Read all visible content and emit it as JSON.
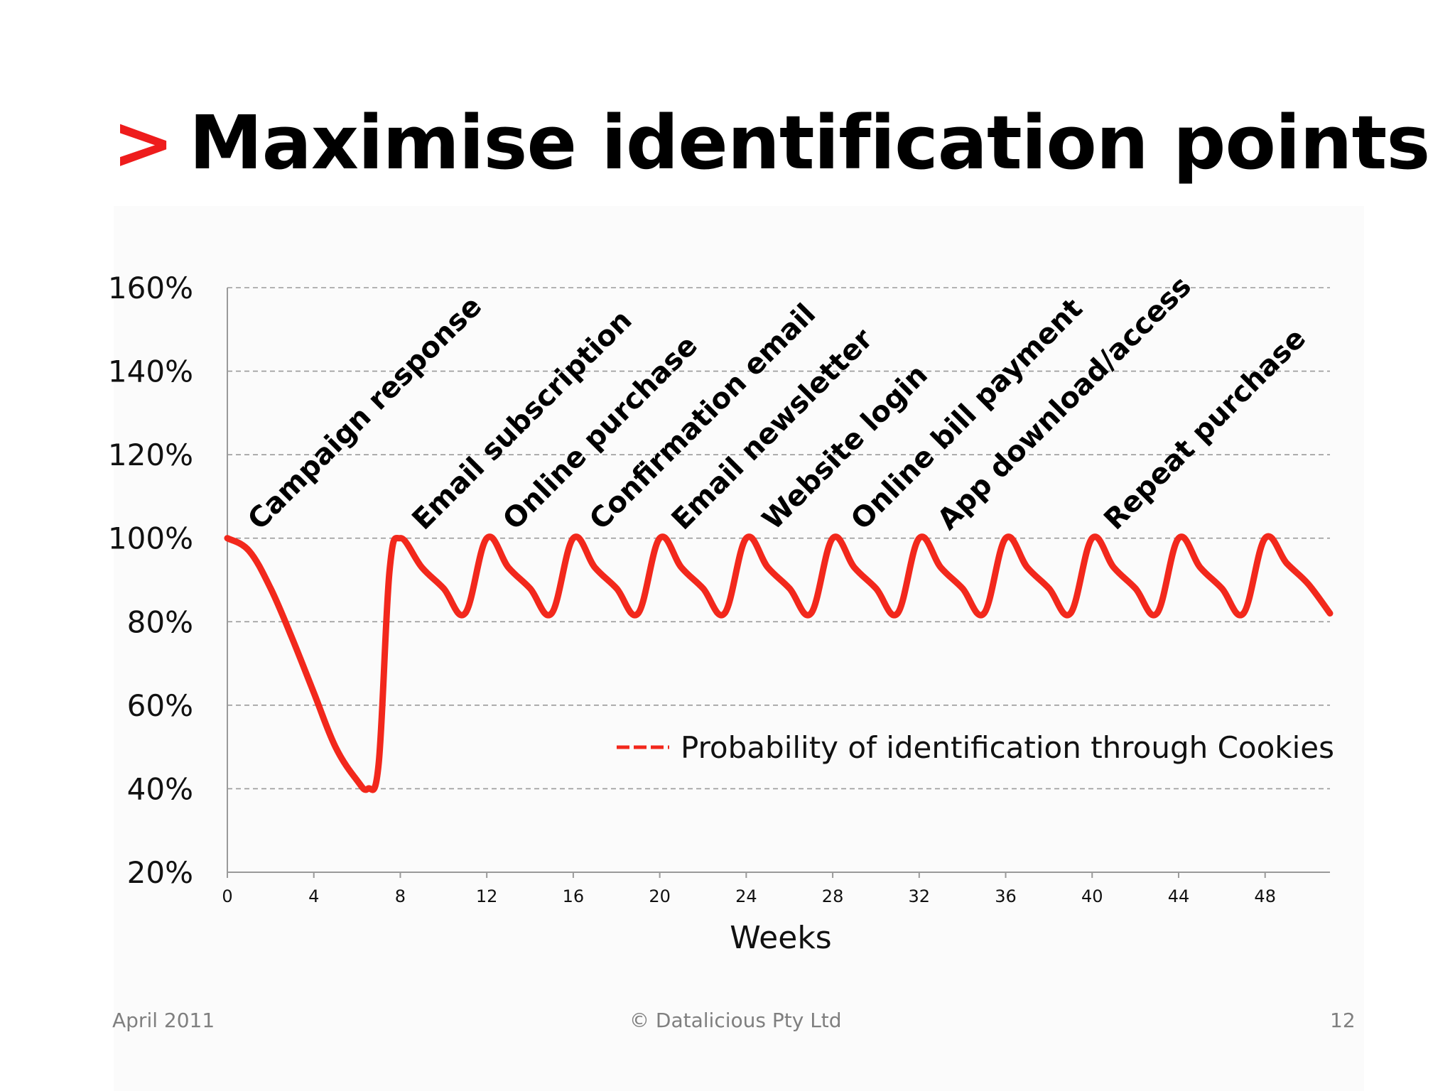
{
  "slide": {
    "title_marker": ">",
    "title": "Maximise identification points",
    "footer_date": "April 2011",
    "footer_copyright": "© Datalicious Pty Ltd",
    "page_number": "12",
    "accent_color": "#ee1c1c"
  },
  "chart_data": {
    "type": "line",
    "title": "",
    "xlabel": "Weeks",
    "ylabel": "",
    "xlim": [
      0,
      51
    ],
    "ylim": [
      20,
      160
    ],
    "x_ticks": [
      "0",
      "4",
      "8",
      "12",
      "16",
      "20",
      "24",
      "28",
      "32",
      "36",
      "40",
      "44",
      "48"
    ],
    "y_ticks": [
      "20%",
      "40%",
      "60%",
      "80%",
      "100%",
      "120%",
      "140%",
      "160%"
    ],
    "grid": "horizontal-dashed",
    "series": [
      {
        "name": "Probability of identification through Cookies",
        "color": "#f2281c",
        "x": [
          0,
          1,
          2,
          3,
          4,
          5,
          6,
          6.5,
          7,
          7.5,
          8,
          9,
          10,
          11,
          12,
          13,
          14,
          15,
          16,
          17,
          18,
          19,
          20,
          21,
          22,
          23,
          24,
          25,
          26,
          27,
          28,
          29,
          30,
          31,
          32,
          33,
          34,
          35,
          36,
          37,
          38,
          39,
          40,
          41,
          42,
          43,
          44,
          45,
          46,
          47,
          48,
          49,
          50,
          51
        ],
        "values": [
          100,
          97,
          88,
          76,
          63,
          50,
          42,
          40,
          46,
          92,
          100,
          93,
          88,
          82,
          100,
          93,
          88,
          82,
          100,
          93,
          88,
          82,
          100,
          93,
          88,
          82,
          100,
          93,
          88,
          82,
          100,
          93,
          88,
          82,
          100,
          93,
          88,
          82,
          100,
          93,
          88,
          82,
          100,
          93,
          88,
          82,
          100,
          93,
          88,
          82,
          100,
          94,
          89,
          82
        ]
      }
    ],
    "legend": {
      "label": "Probability of identification through Cookies",
      "placement": "lower-right"
    },
    "annotations": [
      {
        "text": "Campaign response",
        "x": 1.5
      },
      {
        "text": "Email subscription",
        "x": 9.1
      },
      {
        "text": "Online purchase",
        "x": 13.3
      },
      {
        "text": "Confirmation email",
        "x": 17.3
      },
      {
        "text": "Email newsletter",
        "x": 21.1
      },
      {
        "text": "Website login",
        "x": 25.3
      },
      {
        "text": "Online bill payment",
        "x": 29.4
      },
      {
        "text": "App download/access",
        "x": 33.4
      },
      {
        "text": "Repeat purchase",
        "x": 41.1
      }
    ]
  }
}
